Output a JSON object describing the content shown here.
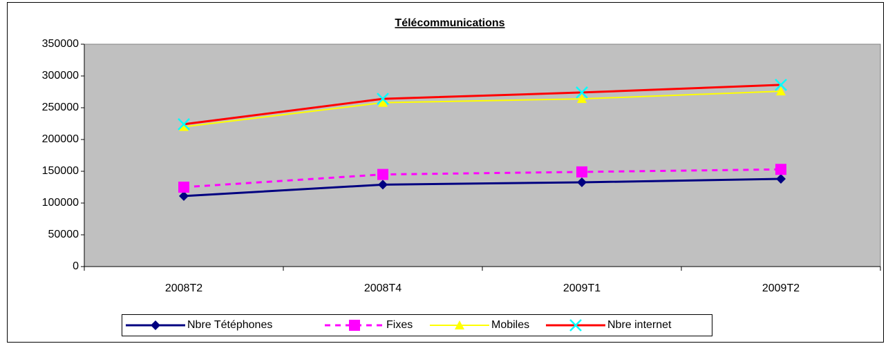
{
  "chart_data": {
    "type": "line",
    "title": "Télécommunications",
    "categories": [
      "2008T2",
      "2008T4",
      "2009T1",
      "2009T2"
    ],
    "series": [
      {
        "name": "Nbre Tétéphones",
        "color": "#000080",
        "marker": "diamond",
        "values": [
          111000,
          129000,
          132600,
          138000
        ]
      },
      {
        "name": "Fixes",
        "color": "#ff00ff",
        "marker": "square",
        "dashed": true,
        "values": [
          125000,
          145000,
          149000,
          153000
        ]
      },
      {
        "name": "Mobiles",
        "color": "#ffff00",
        "marker": "triangle",
        "values": [
          220000,
          258000,
          264000,
          276000
        ]
      },
      {
        "name": "Nbre internet",
        "color": "#ff0000",
        "marker": "x",
        "values": [
          224000,
          264000,
          274000,
          286000
        ]
      }
    ],
    "ylim": [
      0,
      350000
    ],
    "yticks": [
      0,
      50000,
      100000,
      150000,
      200000,
      250000,
      300000,
      350000
    ],
    "legend": "bottom",
    "plot_background": "#c0c0c0"
  }
}
